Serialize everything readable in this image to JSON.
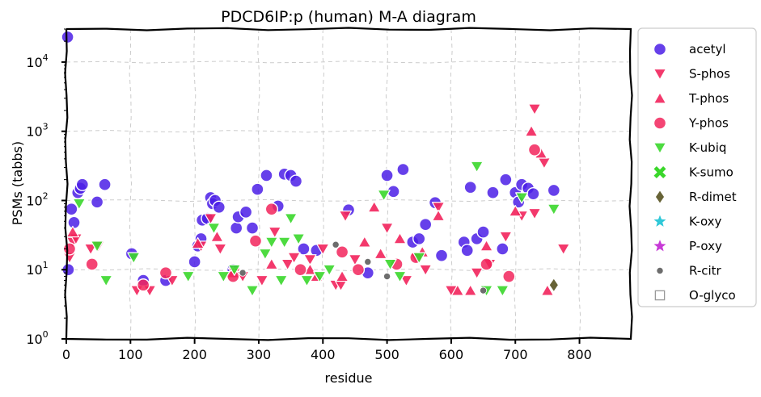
{
  "chart_data": {
    "type": "scatter",
    "title": "PDCD6IP:p (human) M-A diagram",
    "xlabel": "residue",
    "ylabel": "PSMs (tabbs)",
    "xlim": [
      0,
      880
    ],
    "ylim": [
      1,
      30000
    ],
    "yscale": "log",
    "grid": true,
    "legend_position": "outside-right",
    "x_ticks": [
      "0",
      "100",
      "200",
      "300",
      "400",
      "500",
      "600",
      "700",
      "800"
    ],
    "x_tick_values": [
      0,
      100,
      200,
      300,
      400,
      500,
      600,
      700,
      800
    ],
    "y_ticks": [
      {
        "base": "10",
        "exp": "0",
        "value": 1
      },
      {
        "base": "10",
        "exp": "1",
        "value": 10
      },
      {
        "base": "10",
        "exp": "2",
        "value": 100
      },
      {
        "base": "10",
        "exp": "3",
        "value": 1000
      },
      {
        "base": "10",
        "exp": "4",
        "value": 10000
      }
    ],
    "series": [
      {
        "name": "acetyl",
        "marker": "circle",
        "color": "#4b1fe6",
        "points": [
          [
            2,
            23000
          ],
          [
            3,
            10
          ],
          [
            8,
            75
          ],
          [
            12,
            48
          ],
          [
            18,
            130
          ],
          [
            22,
            150
          ],
          [
            25,
            170
          ],
          [
            48,
            95
          ],
          [
            60,
            170
          ],
          [
            102,
            17
          ],
          [
            120,
            7
          ],
          [
            155,
            7
          ],
          [
            200,
            13
          ],
          [
            205,
            22
          ],
          [
            210,
            28
          ],
          [
            212,
            52
          ],
          [
            220,
            55
          ],
          [
            225,
            110
          ],
          [
            228,
            90
          ],
          [
            232,
            100
          ],
          [
            238,
            80
          ],
          [
            260,
            10
          ],
          [
            265,
            40
          ],
          [
            268,
            58
          ],
          [
            280,
            68
          ],
          [
            290,
            40
          ],
          [
            298,
            145
          ],
          [
            312,
            230
          ],
          [
            330,
            83
          ],
          [
            340,
            240
          ],
          [
            350,
            230
          ],
          [
            358,
            190
          ],
          [
            370,
            20
          ],
          [
            390,
            19
          ],
          [
            440,
            73
          ],
          [
            470,
            9
          ],
          [
            500,
            230
          ],
          [
            510,
            135
          ],
          [
            525,
            280
          ],
          [
            540,
            25
          ],
          [
            550,
            28
          ],
          [
            560,
            45
          ],
          [
            575,
            93
          ],
          [
            585,
            16
          ],
          [
            620,
            25
          ],
          [
            625,
            19
          ],
          [
            630,
            155
          ],
          [
            640,
            28
          ],
          [
            650,
            35
          ],
          [
            665,
            130
          ],
          [
            680,
            20
          ],
          [
            685,
            200
          ],
          [
            700,
            130
          ],
          [
            705,
            95
          ],
          [
            710,
            170
          ],
          [
            720,
            150
          ],
          [
            728,
            125
          ],
          [
            760,
            140
          ]
        ]
      },
      {
        "name": "S-phos",
        "marker": "triangle-down",
        "color": "#f2245c",
        "points": [
          [
            5,
            15
          ],
          [
            10,
            25
          ],
          [
            15,
            28
          ],
          [
            38,
            20
          ],
          [
            50,
            22
          ],
          [
            110,
            5
          ],
          [
            130,
            5
          ],
          [
            165,
            7
          ],
          [
            210,
            22
          ],
          [
            225,
            55
          ],
          [
            240,
            20
          ],
          [
            262,
            9
          ],
          [
            275,
            8
          ],
          [
            305,
            7
          ],
          [
            325,
            35
          ],
          [
            345,
            12
          ],
          [
            355,
            15
          ],
          [
            380,
            14
          ],
          [
            400,
            20
          ],
          [
            420,
            6
          ],
          [
            428,
            6
          ],
          [
            435,
            60
          ],
          [
            450,
            14
          ],
          [
            500,
            40
          ],
          [
            530,
            7
          ],
          [
            545,
            15
          ],
          [
            560,
            10
          ],
          [
            580,
            80
          ],
          [
            600,
            5
          ],
          [
            640,
            9
          ],
          [
            660,
            12
          ],
          [
            685,
            30
          ],
          [
            710,
            60
          ],
          [
            730,
            65
          ],
          [
            745,
            350
          ],
          [
            730,
            2100
          ],
          [
            775,
            20
          ]
        ]
      },
      {
        "name": "T-phos",
        "marker": "triangle-up",
        "color": "#f2245c",
        "points": [
          [
            10,
            35
          ],
          [
            205,
            24
          ],
          [
            235,
            30
          ],
          [
            260,
            9
          ],
          [
            320,
            12
          ],
          [
            380,
            10
          ],
          [
            390,
            8
          ],
          [
            430,
            8
          ],
          [
            465,
            25
          ],
          [
            480,
            80
          ],
          [
            490,
            17
          ],
          [
            520,
            28
          ],
          [
            555,
            18
          ],
          [
            580,
            60
          ],
          [
            610,
            5
          ],
          [
            630,
            5
          ],
          [
            655,
            22
          ],
          [
            700,
            70
          ],
          [
            725,
            1000
          ],
          [
            740,
            480
          ],
          [
            750,
            5
          ]
        ]
      },
      {
        "name": "Y-phos",
        "marker": "circle",
        "color": "#f2245c",
        "points": [
          [
            5,
            20
          ],
          [
            40,
            12
          ],
          [
            120,
            6
          ],
          [
            155,
            9
          ],
          [
            260,
            8
          ],
          [
            295,
            26
          ],
          [
            320,
            75
          ],
          [
            365,
            10
          ],
          [
            430,
            18
          ],
          [
            455,
            10
          ],
          [
            515,
            12
          ],
          [
            545,
            15
          ],
          [
            655,
            12
          ],
          [
            690,
            8
          ],
          [
            730,
            540
          ]
        ]
      },
      {
        "name": "K-ubiq",
        "marker": "triangle-down",
        "color": "#3ad72b",
        "points": [
          [
            20,
            90
          ],
          [
            48,
            22
          ],
          [
            62,
            7
          ],
          [
            105,
            15
          ],
          [
            190,
            8
          ],
          [
            230,
            40
          ],
          [
            245,
            8
          ],
          [
            262,
            10
          ],
          [
            290,
            5
          ],
          [
            310,
            17
          ],
          [
            320,
            25
          ],
          [
            335,
            7
          ],
          [
            340,
            25
          ],
          [
            350,
            55
          ],
          [
            362,
            28
          ],
          [
            375,
            7
          ],
          [
            395,
            8
          ],
          [
            410,
            10
          ],
          [
            495,
            120
          ],
          [
            505,
            12
          ],
          [
            520,
            8
          ],
          [
            550,
            15
          ],
          [
            640,
            310
          ],
          [
            655,
            5
          ],
          [
            680,
            5
          ],
          [
            710,
            110
          ],
          [
            760,
            75
          ]
        ]
      },
      {
        "name": "K-sumo",
        "marker": "x",
        "color": "#3ad72b",
        "points": []
      },
      {
        "name": "R-dimet",
        "marker": "diamond",
        "color": "#676336",
        "points": [
          [
            760,
            6
          ]
        ]
      },
      {
        "name": "K-oxy",
        "marker": "star",
        "color": "#30c8d8",
        "points": []
      },
      {
        "name": "P-oxy",
        "marker": "star",
        "color": "#c83ad7",
        "points": []
      },
      {
        "name": "R-citr",
        "marker": "small-circle",
        "color": "#6d6d6d",
        "points": [
          [
            275,
            9
          ],
          [
            420,
            23
          ],
          [
            470,
            13
          ],
          [
            500,
            8
          ],
          [
            650,
            5
          ]
        ]
      },
      {
        "name": "O-glyco",
        "marker": "square-open",
        "color": "#999999",
        "points": []
      }
    ]
  }
}
